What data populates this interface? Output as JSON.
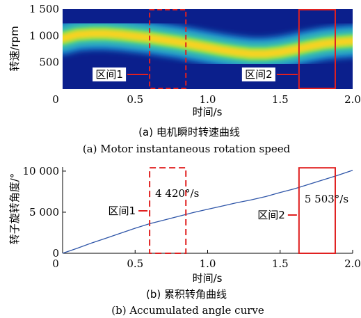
{
  "chart_data": [
    {
      "type": "heatmap",
      "caption_cn": "(a) 电机瞬时转速曲线",
      "caption_en": "(a) Motor instantaneous rotation speed",
      "xlabel": "时间/s",
      "ylabel": "转速/rpm",
      "xlim": [
        0,
        2.0
      ],
      "ylim": [
        0,
        1500
      ],
      "x_ticks": [
        "0",
        "0.5",
        "1.0",
        "1.5",
        "2.0"
      ],
      "x_tick_values": [
        0,
        0.5,
        1.0,
        1.5,
        2.0
      ],
      "y_ticks": [
        "1 500",
        "1 000",
        "500"
      ],
      "y_tick_values": [
        1500,
        1000,
        500
      ],
      "ridge": {
        "x": [
          0.0,
          0.1,
          0.2,
          0.3,
          0.4,
          0.5,
          0.6,
          0.7,
          0.8,
          0.9,
          1.0,
          1.1,
          1.2,
          1.3,
          1.4,
          1.5,
          1.6,
          1.7,
          1.8,
          1.9,
          2.0
        ],
        "y": [
          950,
          1020,
          1040,
          1040,
          1020,
          990,
          960,
          920,
          880,
          830,
          780,
          730,
          690,
          660,
          660,
          690,
          740,
          800,
          850,
          880,
          900
        ]
      },
      "colors": {
        "background": "#0b1f8c",
        "ridge": "#f5d321",
        "box": "#e02020"
      },
      "regions": [
        {
          "label": "区间1",
          "x": [
            0.6,
            0.85
          ],
          "style": "dashed"
        },
        {
          "label": "区间2",
          "x": [
            1.63,
            1.88
          ],
          "style": "solid"
        }
      ]
    },
    {
      "type": "line",
      "caption_cn": "(b) 累积转角曲线",
      "caption_en": "(b) Accumulated angle curve",
      "xlabel": "时间/s",
      "ylabel": "转子旋转角度/°",
      "xlim": [
        0,
        2.0
      ],
      "ylim": [
        0,
        10500
      ],
      "x_ticks": [
        "0",
        "0.5",
        "1.0",
        "1.5",
        "2.0"
      ],
      "x_tick_values": [
        0,
        0.5,
        1.0,
        1.5,
        2.0
      ],
      "y_ticks": [
        "10 000",
        "5 000",
        "0"
      ],
      "y_tick_values": [
        10000,
        5000,
        0
      ],
      "series": [
        {
          "x": [
            0.0,
            0.1,
            0.2,
            0.3,
            0.4,
            0.5,
            0.6,
            0.7,
            0.8,
            0.9,
            1.0,
            1.1,
            1.2,
            1.3,
            1.4,
            1.5,
            1.6,
            1.7,
            1.8,
            1.9,
            2.0
          ],
          "values": [
            0,
            600,
            1250,
            1850,
            2450,
            3050,
            3600,
            4050,
            4500,
            4950,
            5350,
            5750,
            6150,
            6500,
            6900,
            7400,
            7850,
            8400,
            8950,
            9500,
            10100
          ]
        }
      ],
      "colors": {
        "line": "#2e55a8",
        "box": "#e02020"
      },
      "regions": [
        {
          "label": "区间1",
          "rate": "4 420°/s",
          "x": [
            0.6,
            0.85
          ],
          "y": [
            0,
            10400
          ],
          "style": "dashed"
        },
        {
          "label": "区间2",
          "rate": "5 503°/s",
          "x": [
            1.63,
            1.88
          ],
          "y": [
            0,
            10400
          ],
          "style": "solid"
        }
      ]
    }
  ]
}
